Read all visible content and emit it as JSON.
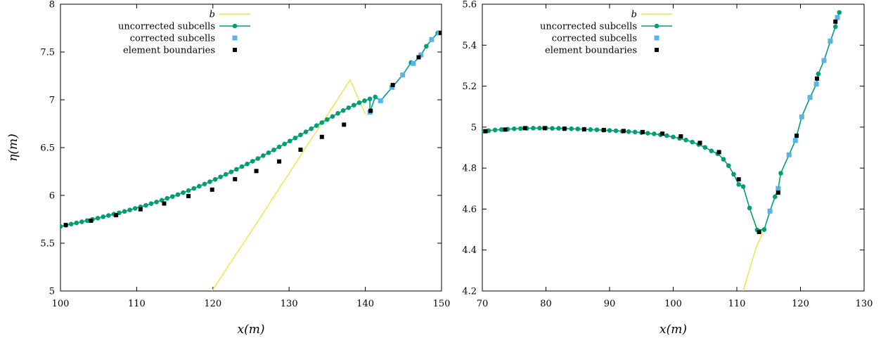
{
  "chart_data": [
    {
      "type": "line",
      "xlabel": "x(m)",
      "ylabel": "η(m)",
      "xlim": [
        100,
        150
      ],
      "ylim": [
        5,
        8
      ],
      "xticks": [
        "100",
        "110",
        "120",
        "130",
        "140",
        "150"
      ],
      "yticks": [
        "5",
        "5.5",
        "6",
        "6.5",
        "7",
        "7.5",
        "8"
      ],
      "legend_position": "top-left",
      "series": [
        {
          "name": "b",
          "color": "#f0e442",
          "x": [
            119.9,
            122,
            124,
            126,
            128,
            130,
            132,
            134,
            136,
            138,
            140.0
          ],
          "y": [
            5.0,
            5.26,
            5.5,
            5.74,
            5.99,
            6.23,
            6.48,
            6.72,
            6.96,
            7.21,
            6.85
          ]
        },
        {
          "name": "uncorrected subcells",
          "color": "#009e73",
          "x": [
            100.0,
            100.7,
            101.4,
            102.1,
            102.8,
            103.5,
            104.2,
            104.9,
            105.6,
            106.3,
            107.0,
            107.7,
            108.4,
            109.1,
            109.8,
            110.5,
            111.2,
            111.9,
            112.6,
            113.3,
            114.0,
            114.7,
            115.4,
            116.1,
            116.8,
            117.5,
            118.2,
            118.9,
            119.6,
            120.3,
            121.0,
            121.7,
            122.4,
            123.1,
            123.8,
            124.5,
            125.2,
            125.9,
            126.6,
            127.3,
            128.0,
            128.7,
            129.4,
            130.1,
            130.8,
            131.5,
            132.2,
            132.9,
            133.6,
            134.3,
            135.0,
            135.7,
            136.4,
            137.1,
            137.8,
            138.5,
            139.2,
            139.9,
            140.6,
            141.3,
            146.0,
            148.0,
            149.5
          ],
          "y": [
            5.675,
            5.688,
            5.7,
            5.712,
            5.724,
            5.737,
            5.749,
            5.762,
            5.776,
            5.79,
            5.804,
            5.818,
            5.832,
            5.848,
            5.864,
            5.88,
            5.896,
            5.914,
            5.931,
            5.95,
            5.969,
            5.988,
            6.008,
            6.029,
            6.05,
            6.073,
            6.096,
            6.119,
            6.143,
            6.168,
            6.194,
            6.22,
            6.246,
            6.273,
            6.301,
            6.329,
            6.357,
            6.386,
            6.416,
            6.446,
            6.476,
            6.507,
            6.538,
            6.569,
            6.601,
            6.633,
            6.665,
            6.697,
            6.73,
            6.762,
            6.794,
            6.826,
            6.858,
            6.888,
            6.917,
            6.944,
            6.969,
            6.99,
            7.01,
            7.03,
            7.39,
            7.56,
            7.7
          ]
        },
        {
          "name": "corrected subcells",
          "color": "#56b4e9",
          "x": [
            140.6,
            142.0,
            143.5,
            144.9,
            146.3,
            147.3,
            148.7,
            149.7
          ],
          "y": [
            6.87,
            6.99,
            7.13,
            7.26,
            7.38,
            7.47,
            7.63,
            7.7
          ]
        },
        {
          "name": "element boundaries",
          "color": "#000000",
          "x": [
            100.7,
            104.0,
            107.3,
            110.5,
            113.6,
            116.8,
            119.9,
            122.9,
            125.7,
            128.7,
            131.5,
            134.3,
            137.2,
            140.7,
            143.6,
            147.0,
            149.9
          ],
          "y": [
            5.69,
            5.735,
            5.793,
            5.855,
            5.915,
            5.993,
            6.06,
            6.17,
            6.255,
            6.355,
            6.478,
            6.612,
            6.74,
            6.885,
            7.155,
            7.445,
            7.7
          ]
        }
      ]
    },
    {
      "type": "line",
      "xlabel": "x(m)",
      "ylabel": "",
      "xlim": [
        70,
        130
      ],
      "ylim": [
        4.2,
        5.6
      ],
      "xticks": [
        "70",
        "80",
        "90",
        "100",
        "110",
        "120",
        "130"
      ],
      "yticks": [
        "4.2",
        "4.4",
        "4.6",
        "4.8",
        "5",
        "5.2",
        "5.4",
        "5.6"
      ],
      "legend_position": "top-left",
      "series": [
        {
          "name": "b",
          "color": "#f0e442",
          "x": [
            111.0,
            112.0,
            113.0,
            114.3
          ],
          "y": [
            4.2,
            4.305,
            4.41,
            4.5
          ]
        },
        {
          "name": "uncorrected subcells",
          "color": "#009e73",
          "x": [
            70.0,
            71.0,
            72.0,
            73.0,
            74.0,
            75.0,
            76.0,
            77.0,
            78.0,
            79.0,
            80.0,
            81.0,
            82.0,
            83.0,
            84.0,
            85.0,
            86.0,
            87.0,
            88.0,
            89.0,
            90.0,
            91.0,
            92.0,
            93.0,
            94.0,
            95.0,
            96.0,
            97.0,
            98.0,
            99.0,
            100.0,
            101.0,
            102.0,
            103.0,
            104.0,
            105.0,
            106.0,
            107.0,
            107.9,
            108.7,
            109.5,
            110.3,
            111.0,
            112.0,
            113.2,
            114.3,
            115.2,
            116.0,
            116.9,
            122.8,
            125.5,
            126.1
          ],
          "y": [
            4.98,
            4.983,
            4.986,
            4.988,
            4.99,
            4.992,
            4.993,
            4.994,
            4.995,
            4.995,
            4.995,
            4.994,
            4.994,
            4.993,
            4.992,
            4.991,
            4.99,
            4.988,
            4.987,
            4.985,
            4.984,
            4.982,
            4.98,
            4.978,
            4.976,
            4.973,
            4.97,
            4.967,
            4.963,
            4.958,
            4.952,
            4.945,
            4.937,
            4.927,
            4.915,
            4.901,
            4.884,
            4.87,
            4.843,
            4.812,
            4.77,
            4.72,
            4.71,
            4.605,
            4.498,
            4.5,
            4.59,
            4.66,
            4.775,
            5.26,
            5.49,
            5.56
          ]
        },
        {
          "name": "corrected subcells",
          "color": "#56b4e9",
          "x": [
            115.2,
            116.5,
            118.2,
            119.2,
            120.2,
            121.5,
            122.5,
            123.7,
            124.7,
            125.8
          ],
          "y": [
            4.59,
            4.7,
            4.865,
            4.935,
            5.05,
            5.145,
            5.21,
            5.325,
            5.42,
            5.535
          ]
        },
        {
          "name": "element boundaries",
          "color": "#000000",
          "x": [
            70.5,
            73.6,
            76.7,
            79.8,
            82.9,
            86.0,
            89.1,
            92.2,
            95.2,
            98.3,
            101.2,
            104.2,
            107.2,
            110.3,
            113.5,
            116.5,
            119.4,
            122.6,
            125.5
          ],
          "y": [
            4.98,
            4.988,
            4.995,
            4.995,
            4.992,
            4.989,
            4.986,
            4.981,
            4.976,
            4.968,
            4.955,
            4.923,
            4.878,
            4.745,
            4.488,
            4.68,
            4.958,
            5.237,
            5.515
          ]
        }
      ]
    }
  ]
}
